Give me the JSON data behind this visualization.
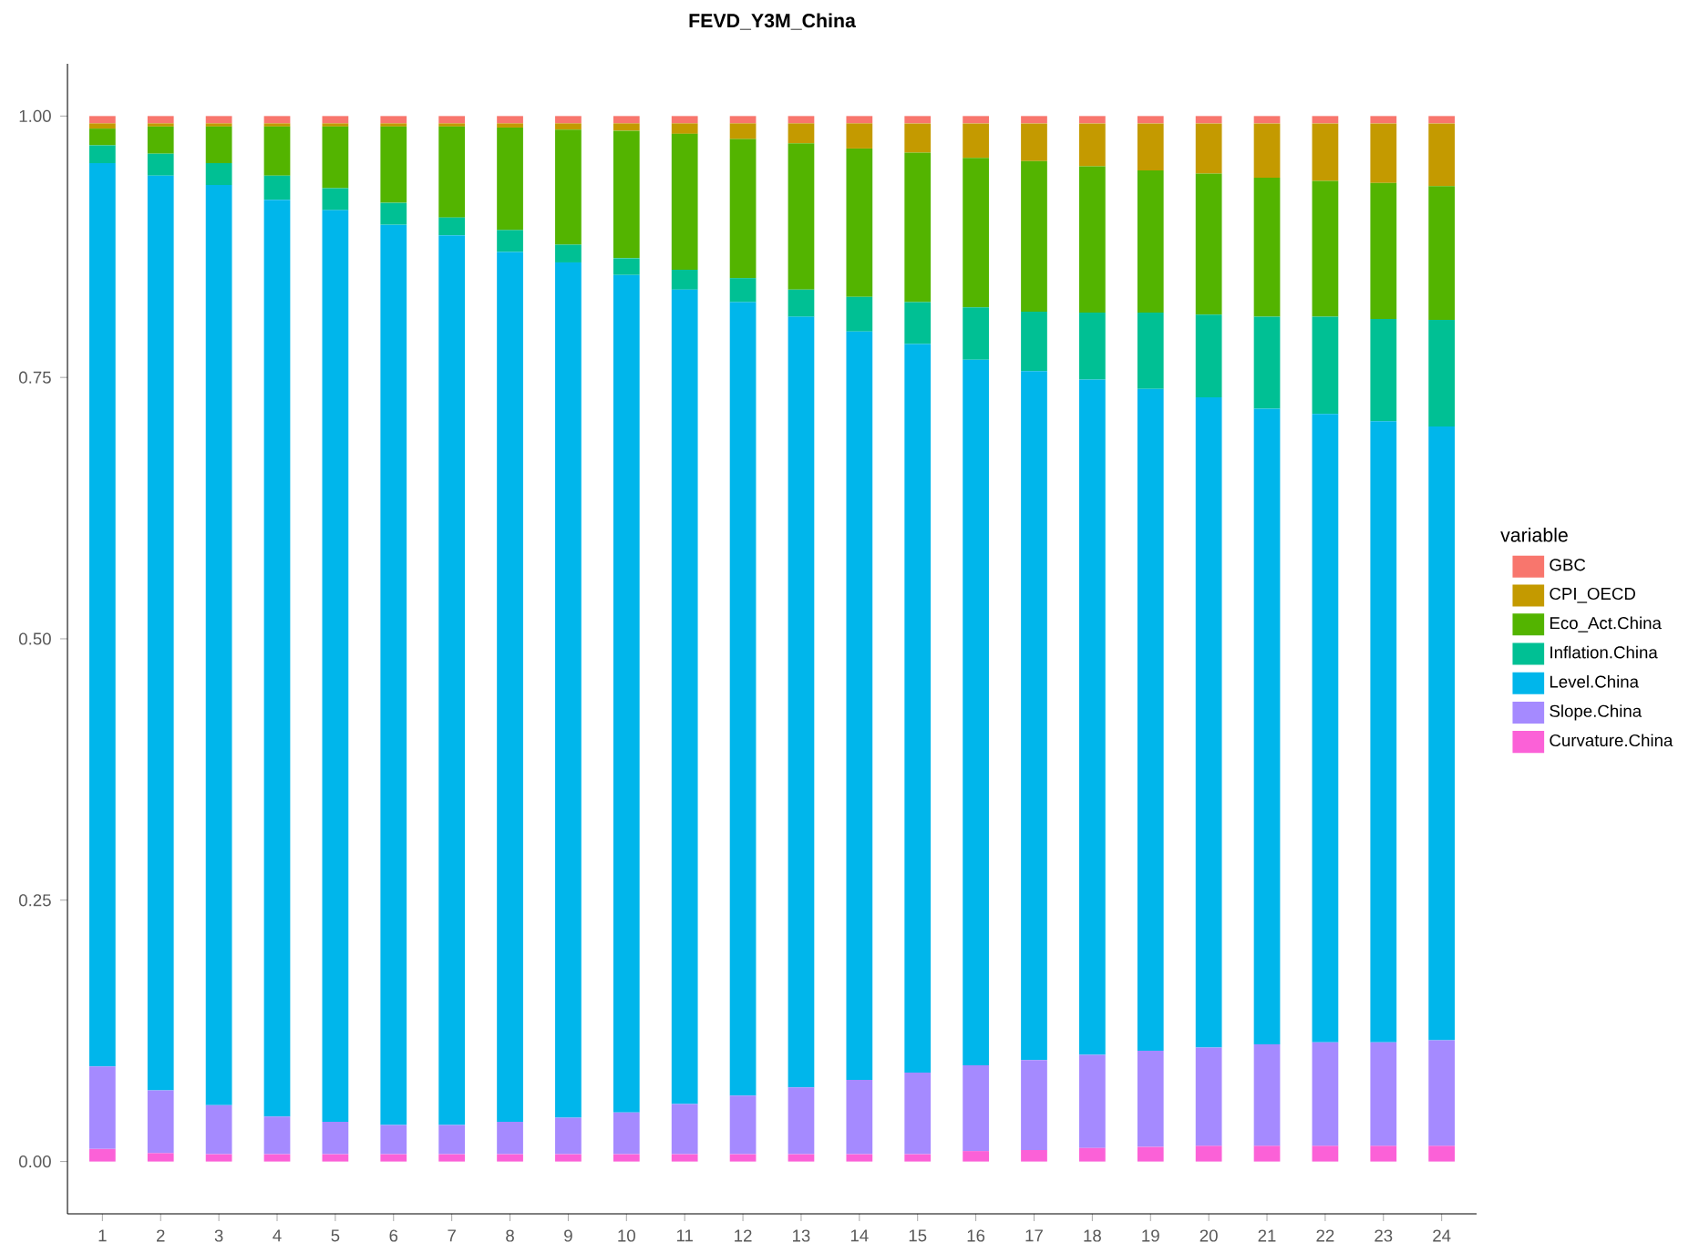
{
  "chart_data": {
    "type": "bar",
    "title": "FEVD_Y3M_China",
    "legend_title": "variable",
    "stacked": true,
    "legend": "right",
    "categories": [
      "1",
      "2",
      "3",
      "4",
      "5",
      "6",
      "7",
      "8",
      "9",
      "10",
      "11",
      "12",
      "13",
      "14",
      "15",
      "16",
      "17",
      "18",
      "19",
      "20",
      "21",
      "22",
      "23",
      "24"
    ],
    "ylim": [
      -0.05,
      1.05
    ],
    "yticks": [
      {
        "value": 0,
        "label": "0.00"
      },
      {
        "value": 0.25,
        "label": "0.25"
      },
      {
        "value": 0.5,
        "label": "0.50"
      },
      {
        "value": 0.75,
        "label": "0.75"
      },
      {
        "value": 1,
        "label": "1.00"
      }
    ],
    "series": [
      {
        "name": "Curvature.China",
        "color": "#fb61d7",
        "values": [
          0.012,
          0.008,
          0.007,
          0.007,
          0.007,
          0.007,
          0.007,
          0.007,
          0.007,
          0.007,
          0.007,
          0.007,
          0.007,
          0.007,
          0.007,
          0.01,
          0.011,
          0.013,
          0.014,
          0.015,
          0.015,
          0.015,
          0.015,
          0.015
        ]
      },
      {
        "name": "Slope.China",
        "color": "#a58aff",
        "values": [
          0.079,
          0.06,
          0.047,
          0.036,
          0.031,
          0.028,
          0.028,
          0.031,
          0.035,
          0.04,
          0.048,
          0.056,
          0.064,
          0.071,
          0.078,
          0.082,
          0.086,
          0.089,
          0.092,
          0.094,
          0.097,
          0.099,
          0.099,
          0.101
        ]
      },
      {
        "name": "Level.China",
        "color": "#00b6eb",
        "values": [
          0.864,
          0.875,
          0.88,
          0.877,
          0.872,
          0.861,
          0.851,
          0.832,
          0.818,
          0.801,
          0.779,
          0.759,
          0.737,
          0.716,
          0.697,
          0.675,
          0.659,
          0.646,
          0.633,
          0.622,
          0.608,
          0.601,
          0.594,
          0.587
        ]
      },
      {
        "name": "Inflation.China",
        "color": "#00c094",
        "values": [
          0.017,
          0.021,
          0.021,
          0.023,
          0.021,
          0.021,
          0.017,
          0.021,
          0.017,
          0.016,
          0.019,
          0.023,
          0.026,
          0.033,
          0.04,
          0.05,
          0.057,
          0.064,
          0.073,
          0.079,
          0.088,
          0.093,
          0.098,
          0.102
        ]
      },
      {
        "name": "Eco_Act.China",
        "color": "#53b400",
        "values": [
          0.016,
          0.026,
          0.035,
          0.047,
          0.059,
          0.073,
          0.087,
          0.098,
          0.11,
          0.122,
          0.13,
          0.133,
          0.14,
          0.142,
          0.143,
          0.143,
          0.144,
          0.14,
          0.136,
          0.135,
          0.133,
          0.13,
          0.13,
          0.128
        ]
      },
      {
        "name": "CPI_OECD",
        "color": "#c49a00",
        "values": [
          0.005,
          0.003,
          0.003,
          0.003,
          0.003,
          0.003,
          0.003,
          0.004,
          0.006,
          0.007,
          0.01,
          0.015,
          0.019,
          0.024,
          0.028,
          0.033,
          0.036,
          0.041,
          0.045,
          0.048,
          0.052,
          0.055,
          0.057,
          0.06
        ]
      },
      {
        "name": "GBC",
        "color": "#f8766d",
        "values": [
          0.007,
          0.007,
          0.007,
          0.007,
          0.007,
          0.007,
          0.007,
          0.007,
          0.007,
          0.007,
          0.007,
          0.007,
          0.007,
          0.007,
          0.007,
          0.007,
          0.007,
          0.007,
          0.007,
          0.007,
          0.007,
          0.007,
          0.007,
          0.007
        ]
      }
    ]
  }
}
